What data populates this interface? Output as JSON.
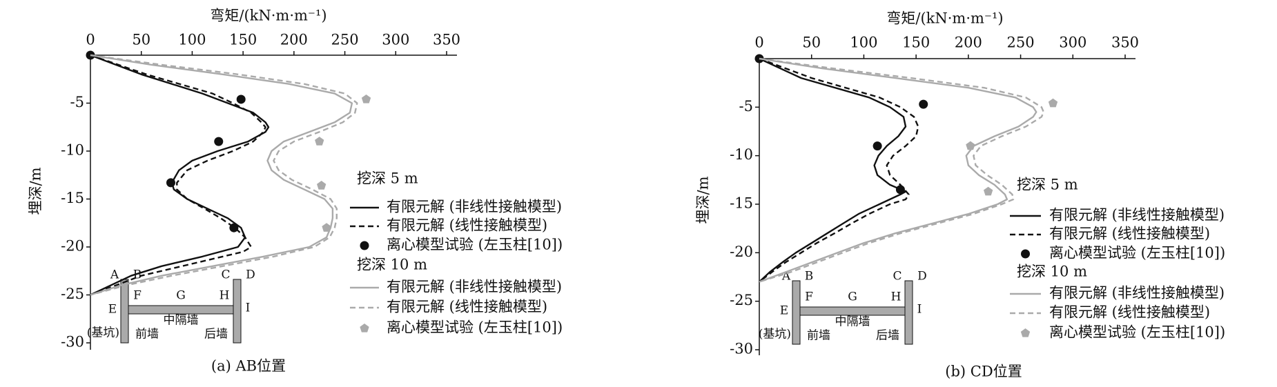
{
  "chart_data": [
    {
      "type": "line",
      "xlabel": "弯矩/(kN·m·m⁻¹)",
      "ylabel": "埋深/m",
      "caption": "(a) AB位置",
      "xlim": [
        0,
        350
      ],
      "xticks": [
        0,
        50,
        100,
        150,
        200,
        250,
        300,
        350
      ],
      "ylim": [
        -30,
        0
      ],
      "yticks": [
        -30,
        -25,
        -20,
        -15,
        -10,
        -5
      ],
      "legend_headers": [
        "挖深 5 m",
        "挖深 10 m"
      ],
      "series": [
        {
          "name": "有限元解 (非线性接触模型)",
          "color": "#111111",
          "style": "solid",
          "moment": [
            0,
            50,
            110,
            135,
            160,
            172,
            175,
            172,
            155,
            125,
            100,
            87,
            80,
            82,
            95,
            115,
            135,
            148,
            152,
            145,
            110,
            70,
            40,
            20,
            0
          ],
          "depth": [
            0,
            -2,
            -4,
            -5,
            -6,
            -7,
            -7.5,
            -8,
            -9,
            -10,
            -11,
            -12,
            -13.3,
            -14,
            -15,
            -16,
            -17,
            -18,
            -19,
            -20,
            -21,
            -22,
            -23,
            -24,
            -25
          ]
        },
        {
          "name": "有限元解 (线性接触模型)",
          "color": "#111111",
          "style": "dashed",
          "moment": [
            0,
            55,
            120,
            140,
            158,
            168,
            172,
            170,
            160,
            140,
            115,
            95,
            85,
            85,
            95,
            112,
            128,
            142,
            152,
            158,
            150,
            130,
            90,
            50,
            25,
            0
          ],
          "depth": [
            0,
            -2,
            -4,
            -5,
            -6,
            -7,
            -7.5,
            -8,
            -9,
            -10,
            -11,
            -12,
            -13.3,
            -14,
            -15,
            -16,
            -17,
            -18,
            -19,
            -20,
            -20.5,
            -21,
            -22,
            -23,
            -24,
            -25
          ]
        },
        {
          "name": "离心模型试验 (左玉柱[10])",
          "color": "#111111",
          "style": "marker",
          "marker": "circle",
          "moment": [
            0,
            148,
            126,
            79,
            141
          ],
          "depth": [
            0,
            -4.6,
            -9,
            -13.3,
            -18
          ]
        },
        {
          "name": "有限元解 (非线性接触模型)",
          "color": "#aaaaaa",
          "style": "solid",
          "moment": [
            0,
            60,
            130,
            195,
            240,
            257,
            255,
            240,
            215,
            190,
            178,
            174,
            178,
            190,
            210,
            230,
            238,
            238,
            236,
            232,
            215,
            170,
            120,
            70,
            30,
            0
          ],
          "depth": [
            0,
            -1,
            -2,
            -3,
            -4,
            -5,
            -6,
            -7,
            -8,
            -9,
            -10,
            -11,
            -12,
            -13,
            -14,
            -15,
            -16,
            -17,
            -18,
            -19,
            -20,
            -21,
            -22,
            -23,
            -24,
            -25
          ]
        },
        {
          "name": "有限元解 (线性接触模型)",
          "color": "#aaaaaa",
          "style": "dashed",
          "moment": [
            0,
            70,
            145,
            210,
            250,
            262,
            260,
            248,
            225,
            200,
            185,
            180,
            185,
            198,
            218,
            236,
            242,
            242,
            240,
            235,
            220,
            180,
            130,
            80,
            35,
            0
          ],
          "depth": [
            0,
            -1,
            -2,
            -3,
            -4,
            -5,
            -6,
            -7,
            -8,
            -9,
            -10,
            -11,
            -12,
            -13,
            -14,
            -15,
            -16,
            -17,
            -18,
            -19,
            -20,
            -21,
            -22,
            -23,
            -24,
            -25
          ]
        },
        {
          "name": "离心模型试验 (左玉柱[10])",
          "color": "#aaaaaa",
          "style": "marker",
          "marker": "pentagon",
          "moment": [
            271,
            225,
            227,
            232
          ],
          "depth": [
            -4.6,
            -9,
            -13.6,
            -18
          ]
        }
      ],
      "inset": {
        "points": [
          "A",
          "B",
          "C",
          "D",
          "E",
          "F",
          "G",
          "H",
          "I"
        ],
        "middle_wall": "中隔墙",
        "front_wall": "前墙",
        "back_wall": "后墙",
        "pit": "(基坑)"
      }
    },
    {
      "type": "line",
      "xlabel": "弯矩/(kN·m·m⁻¹)",
      "ylabel": "埋深/m",
      "caption": "(b) CD位置",
      "xlim": [
        0,
        350
      ],
      "xticks": [
        0,
        50,
        100,
        150,
        200,
        250,
        300,
        350
      ],
      "ylim": [
        -30,
        0
      ],
      "yticks": [
        -30,
        -25,
        -20,
        -15,
        -10,
        -5
      ],
      "legend_headers": [
        "挖深 5 m",
        "挖深 10 m"
      ],
      "series": [
        {
          "name": "有限元解 (非线性接触模型)",
          "color": "#111111",
          "style": "solid",
          "moment": [
            0,
            40,
            105,
            125,
            138,
            140,
            133,
            122,
            114,
            110,
            113,
            125,
            140,
            135,
            115,
            95,
            80,
            65,
            50,
            35,
            22,
            10,
            0
          ],
          "depth": [
            0,
            -2,
            -4,
            -5,
            -6,
            -7,
            -8,
            -9,
            -10,
            -11,
            -12,
            -13,
            -13.7,
            -14,
            -15,
            -16,
            -17,
            -18,
            -19,
            -20,
            -21,
            -22,
            -23
          ]
        },
        {
          "name": "有限元解 (线性接触模型)",
          "color": "#111111",
          "style": "dashed",
          "moment": [
            0,
            50,
            115,
            135,
            148,
            152,
            150,
            140,
            128,
            122,
            125,
            135,
            143,
            140,
            125,
            105,
            88,
            72,
            55,
            40,
            25,
            12,
            0
          ],
          "depth": [
            0,
            -2,
            -4,
            -5,
            -6,
            -7,
            -8,
            -9,
            -10,
            -11,
            -12,
            -13,
            -14,
            -14.5,
            -15,
            -16,
            -17,
            -18,
            -19,
            -20,
            -21,
            -22,
            -23
          ]
        },
        {
          "name": "离心模型试验 (左玉柱[10])",
          "color": "#111111",
          "style": "marker",
          "marker": "circle",
          "moment": [
            0,
            157,
            113,
            135
          ],
          "depth": [
            0,
            -4.7,
            -9,
            -13.5
          ]
        },
        {
          "name": "有限元解 (非线性接触模型)",
          "color": "#aaaaaa",
          "style": "solid",
          "moment": [
            0,
            60,
            130,
            200,
            245,
            262,
            265,
            262,
            248,
            225,
            205,
            198,
            200,
            210,
            225,
            235,
            237,
            228,
            200,
            165,
            130,
            100,
            75,
            50,
            25,
            0
          ],
          "depth": [
            0,
            -1,
            -2,
            -3,
            -4,
            -5,
            -5.5,
            -6,
            -7,
            -8,
            -9,
            -10,
            -11,
            -12,
            -13,
            -14,
            -14.5,
            -15,
            -16,
            -17,
            -18,
            -19,
            -20,
            -21,
            -22,
            -23
          ]
        },
        {
          "name": "有限元解 (线性接触模型)",
          "color": "#aaaaaa",
          "style": "dashed",
          "moment": [
            0,
            70,
            145,
            215,
            255,
            270,
            272,
            270,
            255,
            232,
            212,
            205,
            207,
            218,
            232,
            242,
            243,
            232,
            205,
            170,
            135,
            105,
            80,
            55,
            30,
            0
          ],
          "depth": [
            0,
            -1,
            -2,
            -3,
            -4,
            -5,
            -5.5,
            -6,
            -7,
            -8,
            -9,
            -10,
            -11,
            -12,
            -13,
            -14,
            -14.5,
            -15,
            -16,
            -17,
            -18,
            -19,
            -20,
            -21,
            -22,
            -23
          ]
        },
        {
          "name": "离心模型试验 (左玉柱[10])",
          "color": "#aaaaaa",
          "style": "marker",
          "marker": "pentagon",
          "moment": [
            281,
            202,
            219
          ],
          "depth": [
            -4.6,
            -9,
            -13.7
          ]
        }
      ],
      "inset": {
        "points": [
          "A",
          "B",
          "C",
          "D",
          "E",
          "F",
          "G",
          "H",
          "I"
        ],
        "middle_wall": "中隔墙",
        "front_wall": "前墙",
        "back_wall": "后墙",
        "pit": "(基坑)"
      }
    }
  ]
}
